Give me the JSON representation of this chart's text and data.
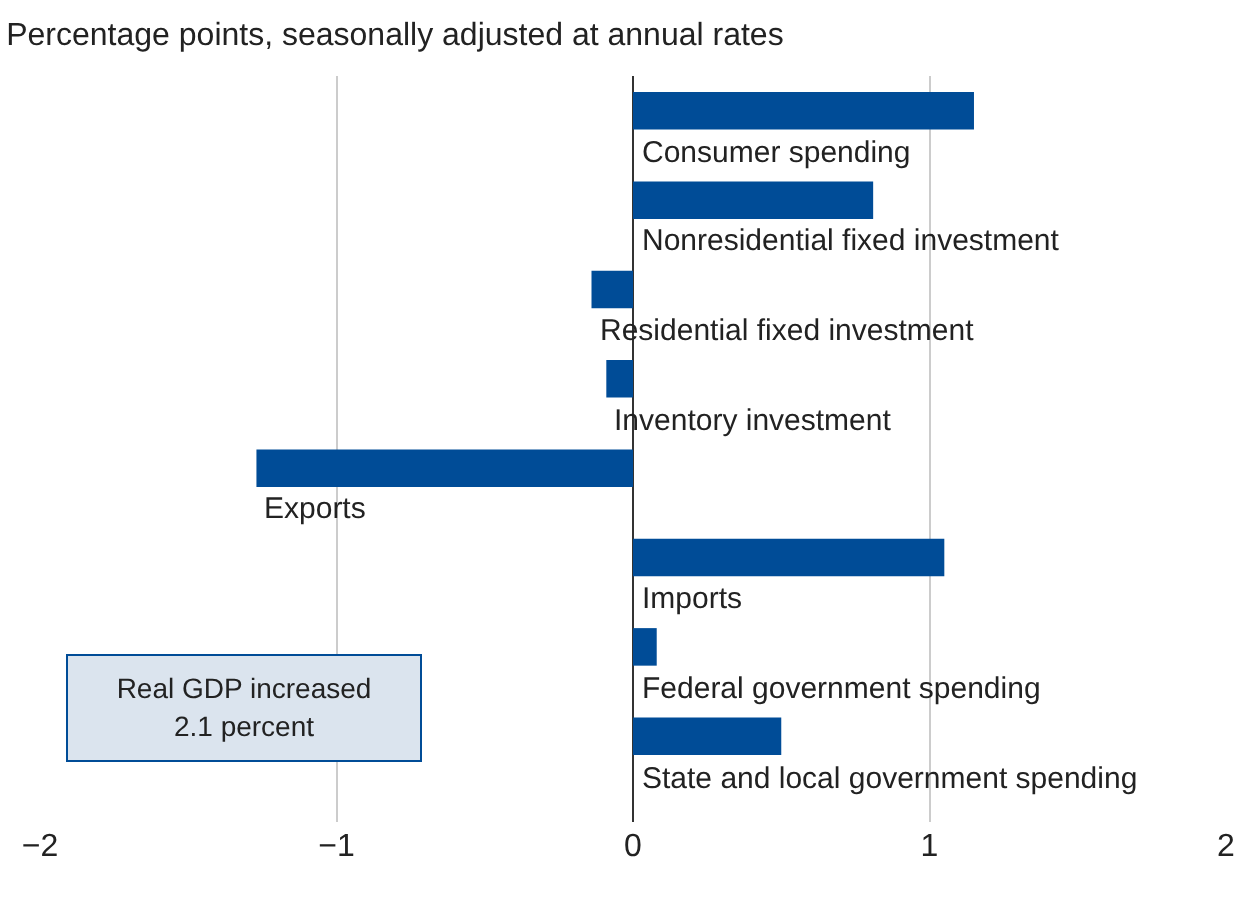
{
  "chart_data": {
    "type": "bar",
    "orientation": "horizontal",
    "title": "Percentage points, seasonally adjusted at annual rates",
    "categories": [
      "Consumer spending",
      "Nonresidential fixed investment",
      "Residential fixed investment",
      "Inventory investment",
      "Exports",
      "Imports",
      "Federal government spending",
      "State and local government spending"
    ],
    "values": [
      1.15,
      0.81,
      -0.14,
      -0.09,
      -1.27,
      1.05,
      0.08,
      0.5
    ],
    "color": "#004c97",
    "xlim": [
      -2,
      2
    ],
    "xticks": [
      -2,
      -1,
      0,
      1,
      2
    ],
    "grid": "x",
    "annotations": [
      "Real GDP increased\n2.1 percent"
    ]
  }
}
